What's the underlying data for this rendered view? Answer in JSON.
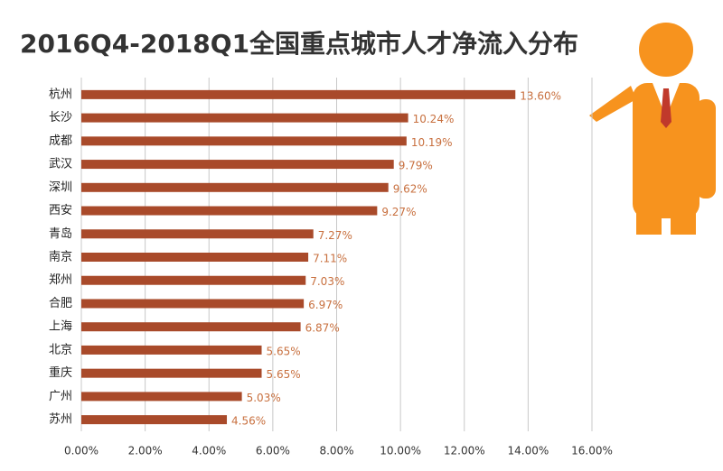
{
  "chart_data": {
    "type": "barh",
    "title": "2016Q4-2018Q1全国重点城市人才净流入分布",
    "categories": [
      "杭州",
      "长沙",
      "成都",
      "武汉",
      "深圳",
      "西安",
      "青岛",
      "南京",
      "郑州",
      "合肥",
      "上海",
      "北京",
      "重庆",
      "广州",
      "苏州"
    ],
    "values": [
      13.6,
      10.24,
      10.19,
      9.79,
      9.62,
      9.27,
      7.27,
      7.11,
      7.03,
      6.97,
      6.87,
      5.65,
      5.65,
      5.03,
      4.56
    ],
    "value_labels": [
      "13.60%",
      "10.24%",
      "10.19%",
      "9.79%",
      "9.62%",
      "9.27%",
      "7.27%",
      "7.11%",
      "7.03%",
      "6.97%",
      "6.87%",
      "5.65%",
      "5.65%",
      "5.03%",
      "4.56%"
    ],
    "color": "#a94a2a",
    "xlim": [
      0,
      16
    ],
    "xticks": [
      {
        "value": 0,
        "label": "0.00%"
      },
      {
        "value": 2,
        "label": "2.00%"
      },
      {
        "value": 4,
        "label": "4.00%"
      },
      {
        "value": 6,
        "label": "6.00%"
      },
      {
        "value": 8,
        "label": "8.00%"
      },
      {
        "value": 10,
        "label": "10.00%"
      },
      {
        "value": 12,
        "label": "12.00%"
      },
      {
        "value": 14,
        "label": "14.00%"
      },
      {
        "value": 16,
        "label": "16.00%"
      }
    ],
    "grid": true
  }
}
